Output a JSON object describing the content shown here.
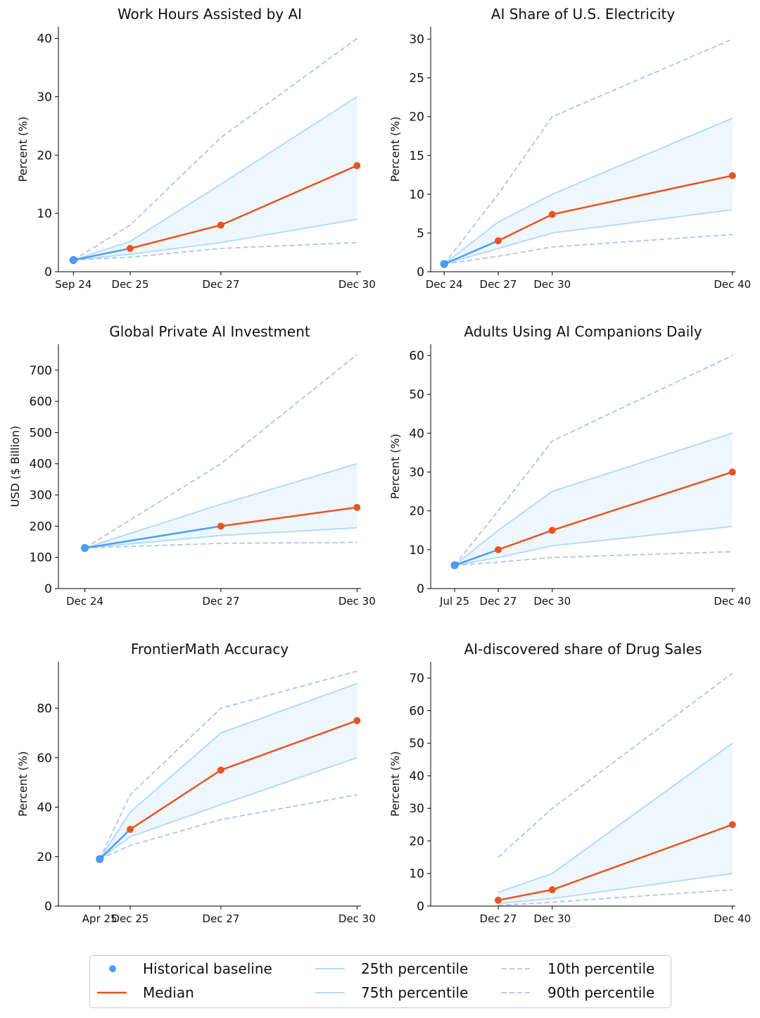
{
  "colors": {
    "historical": "#4a9eff",
    "median": "#e8541e",
    "quartile_line": "#b3dcf7",
    "quartile_fill": "#eef7fd",
    "decile_dashed": "#aec4e6"
  },
  "legend": {
    "placement": "bottom-center",
    "items": [
      {
        "label": "Historical baseline",
        "style": "marker"
      },
      {
        "label": "Median",
        "style": "solid-orange"
      },
      {
        "label": "25th percentile",
        "style": "solid-light"
      },
      {
        "label": "75th percentile",
        "style": "solid-light"
      },
      {
        "label": "10th percentile",
        "style": "dashed"
      },
      {
        "label": "90th percentile",
        "style": "dashed"
      }
    ]
  },
  "chart_data": [
    {
      "type": "line",
      "title": "Work Hours Assisted by AI",
      "ylabel": "Percent (%)",
      "xlim": [
        "2024-06-01",
        "2031-02-01"
      ],
      "ylim": [
        0,
        42
      ],
      "yticks": [
        0,
        10,
        20,
        30,
        40
      ],
      "xticks": [
        {
          "date": "2024-09-30",
          "label": "Sep 24"
        },
        {
          "date": "2025-12-31",
          "label": "Dec 25"
        },
        {
          "date": "2027-12-31",
          "label": "Dec 27"
        },
        {
          "date": "2030-12-31",
          "label": "Dec 30"
        }
      ],
      "historical": {
        "date": "2024-09-30",
        "value": 2
      },
      "forecast_dates": [
        "2025-12-31",
        "2027-12-31",
        "2030-12-31"
      ],
      "median": [
        4,
        8,
        18.2
      ],
      "p25": [
        3,
        5,
        9
      ],
      "p75": [
        5.2,
        15,
        30
      ],
      "p10": [
        2.5,
        4,
        5
      ],
      "p90": [
        8,
        23,
        40
      ]
    },
    {
      "type": "line",
      "title": "AI Share of U.S. Electricity",
      "ylabel": "Percent (%)",
      "xlim": [
        "2024-04-01",
        "2041-03-01"
      ],
      "ylim": [
        0,
        31.6
      ],
      "yticks": [
        0,
        5,
        10,
        15,
        20,
        25,
        30
      ],
      "xticks": [
        {
          "date": "2024-12-31",
          "label": "Dec 24"
        },
        {
          "date": "2027-12-31",
          "label": "Dec 27"
        },
        {
          "date": "2030-12-31",
          "label": "Dec 30"
        },
        {
          "date": "2040-12-31",
          "label": "Dec 40"
        }
      ],
      "historical": {
        "date": "2024-12-31",
        "value": 1
      },
      "forecast_dates": [
        "2027-12-31",
        "2030-12-31",
        "2040-12-31"
      ],
      "median": [
        4,
        7.4,
        12.4
      ],
      "p25": [
        3,
        5,
        8
      ],
      "p75": [
        6.4,
        10,
        19.8
      ],
      "p10": [
        2,
        3.2,
        4.8
      ],
      "p90": [
        10,
        20,
        30
      ]
    },
    {
      "type": "line",
      "title": "Global Private AI Investment",
      "ylabel": "USD ($ Billion)",
      "xlim": [
        "2024-06-01",
        "2031-02-01"
      ],
      "ylim": [
        0,
        783
      ],
      "yticks": [
        0,
        100,
        200,
        300,
        400,
        500,
        600,
        700
      ],
      "xticks": [
        {
          "date": "2024-12-31",
          "label": "Dec 24"
        },
        {
          "date": "2027-12-31",
          "label": "Dec 27"
        },
        {
          "date": "2030-12-31",
          "label": "Dec 30"
        }
      ],
      "historical": {
        "date": "2024-12-31",
        "value": 130
      },
      "forecast_dates": [
        "2027-12-31",
        "2030-12-31"
      ],
      "median": [
        200,
        260
      ],
      "p25": [
        170,
        195
      ],
      "p75": [
        270,
        400
      ],
      "p10": [
        145,
        148
      ],
      "p90": [
        400,
        750
      ]
    },
    {
      "type": "line",
      "title": "Adults Using AI Companions Daily",
      "ylabel": "Percent (%)",
      "xlim": [
        "2024-04-01",
        "2041-03-01"
      ],
      "ylim": [
        0,
        62.9
      ],
      "yticks": [
        0,
        10,
        20,
        30,
        40,
        50,
        60
      ],
      "xticks": [
        {
          "date": "2025-07-31",
          "label": "Jul 25"
        },
        {
          "date": "2027-12-31",
          "label": "Dec 27"
        },
        {
          "date": "2030-12-31",
          "label": "Dec 30"
        },
        {
          "date": "2040-12-31",
          "label": "Dec 40"
        }
      ],
      "historical": {
        "date": "2025-07-31",
        "value": 6
      },
      "forecast_dates": [
        "2027-12-31",
        "2030-12-31",
        "2040-12-31"
      ],
      "median": [
        10,
        15,
        30
      ],
      "p25": [
        8,
        11,
        16
      ],
      "p75": [
        15,
        25,
        40
      ],
      "p10": [
        6.8,
        8,
        9.5
      ],
      "p90": [
        20,
        38,
        60
      ]
    },
    {
      "type": "line",
      "title": "FrontierMath Accuracy",
      "ylabel": "Percent (%)",
      "xlim": [
        "2024-06-01",
        "2031-02-01"
      ],
      "ylim": [
        0,
        98.8
      ],
      "yticks": [
        0,
        20,
        40,
        60,
        80
      ],
      "xticks": [
        {
          "date": "2025-04-30",
          "label": "Apr 25"
        },
        {
          "date": "2025-12-31",
          "label": "Dec 25"
        },
        {
          "date": "2027-12-31",
          "label": "Dec 27"
        },
        {
          "date": "2030-12-31",
          "label": "Dec 30"
        }
      ],
      "historical": {
        "date": "2025-04-30",
        "value": 19
      },
      "forecast_dates": [
        "2025-12-31",
        "2027-12-31",
        "2030-12-31"
      ],
      "median": [
        31,
        55,
        75
      ],
      "p25": [
        28,
        41,
        60
      ],
      "p75": [
        38,
        70,
        90
      ],
      "p10": [
        24.5,
        35,
        45
      ],
      "p90": [
        45,
        80,
        95
      ]
    },
    {
      "type": "line",
      "title": "AI-discovered share of Drug Sales",
      "ylabel": "Percent (%)",
      "xlim": [
        "2024-04-01",
        "2041-03-01"
      ],
      "ylim": [
        0,
        75
      ],
      "yticks": [
        0,
        10,
        20,
        30,
        40,
        50,
        60,
        70
      ],
      "xticks": [
        {
          "date": "2027-12-31",
          "label": "Dec 27"
        },
        {
          "date": "2030-12-31",
          "label": "Dec 30"
        },
        {
          "date": "2040-12-31",
          "label": "Dec 40"
        }
      ],
      "historical": null,
      "forecast_dates": [
        "2027-12-31",
        "2030-12-31",
        "2040-12-31"
      ],
      "median": [
        1.8,
        5,
        25
      ],
      "p25": [
        0.8,
        2.3,
        10
      ],
      "p75": [
        4.2,
        10,
        50
      ],
      "p10": [
        0.2,
        1.2,
        5
      ],
      "p90": [
        15,
        30,
        71.5
      ]
    }
  ]
}
